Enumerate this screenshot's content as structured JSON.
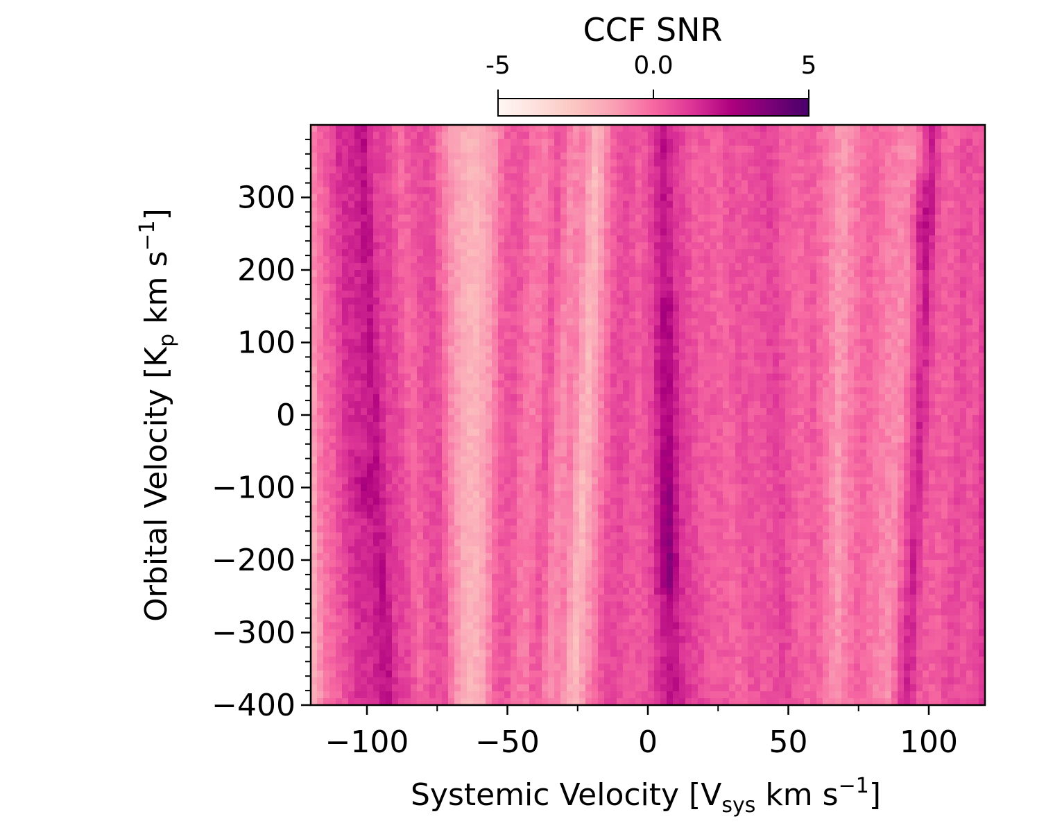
{
  "chart_data": {
    "type": "heatmap",
    "title": "",
    "xlabel": "Systemic Velocity [V",
    "xlabel_sub": "sys",
    "xlabel_units": " km s",
    "xlabel_sup": "−1",
    "xlabel_close": "]",
    "ylabel": "Orbital Velocity [K",
    "ylabel_sub": "p",
    "ylabel_units": " km s",
    "ylabel_sup": "−1",
    "ylabel_close": "]",
    "xlim": [
      -120,
      120
    ],
    "ylim": [
      -400,
      400
    ],
    "x_ticks": [
      -100,
      -50,
      0,
      50,
      100
    ],
    "x_tick_labels": [
      "−100",
      "−50",
      "0",
      "50",
      "100"
    ],
    "y_ticks": [
      -400,
      -300,
      -200,
      -100,
      0,
      100,
      200,
      300
    ],
    "y_tick_labels": [
      "−400",
      "−300",
      "−200",
      "−100",
      "0",
      "100",
      "200",
      "300"
    ],
    "colorbar": {
      "label": "CCF SNR",
      "range": [
        -5,
        5
      ],
      "ticks": [
        -5,
        0,
        5
      ],
      "tick_labels": [
        "-5",
        "0.0",
        "5"
      ],
      "colormap": "RdPu",
      "colors": [
        "#fff7f3",
        "#fde0dd",
        "#fcc5c0",
        "#fa9fb5",
        "#f768a1",
        "#dd3497",
        "#ae017e",
        "#7a0177",
        "#49006a"
      ]
    },
    "column_profile_snr": [
      {
        "v": -120,
        "snr": -1.6
      },
      {
        "v": -117,
        "snr": -0.3
      },
      {
        "v": -112,
        "snr": 0.4
      },
      {
        "v": -107,
        "snr": 1.4
      },
      {
        "v": -101,
        "snr": 1.6
      },
      {
        "v": -97,
        "snr": 2.2
      },
      {
        "v": -93,
        "snr": 1.0
      },
      {
        "v": -89,
        "snr": 0.9
      },
      {
        "v": -84,
        "snr": -0.1
      },
      {
        "v": -80,
        "snr": 0.6
      },
      {
        "v": -75,
        "snr": 0.8
      },
      {
        "v": -70,
        "snr": -0.8
      },
      {
        "v": -66,
        "snr": -1.6
      },
      {
        "v": -62,
        "snr": -2.0
      },
      {
        "v": -57,
        "snr": -1.2
      },
      {
        "v": -53,
        "snr": 0.2
      },
      {
        "v": -48,
        "snr": 0.6
      },
      {
        "v": -44,
        "snr": -0.2
      },
      {
        "v": -40,
        "snr": -0.4
      },
      {
        "v": -36,
        "snr": 0.6
      },
      {
        "v": -31,
        "snr": -0.8
      },
      {
        "v": -27,
        "snr": -0.4
      },
      {
        "v": -22,
        "snr": -2.2
      },
      {
        "v": -18,
        "snr": -0.8
      },
      {
        "v": -13,
        "snr": 0.6
      },
      {
        "v": -9,
        "snr": 0.8
      },
      {
        "v": -4,
        "snr": 0.3
      },
      {
        "v": 0,
        "snr": 0.6
      },
      {
        "v": 4,
        "snr": 1.6
      },
      {
        "v": 7,
        "snr": 2.2
      },
      {
        "v": 11,
        "snr": 1.2
      },
      {
        "v": 15,
        "snr": 0.8
      },
      {
        "v": 20,
        "snr": 0.2
      },
      {
        "v": 24,
        "snr": 0.4
      },
      {
        "v": 28,
        "snr": 0.0
      },
      {
        "v": 33,
        "snr": 0.6
      },
      {
        "v": 37,
        "snr": 0.4
      },
      {
        "v": 42,
        "snr": 0.6
      },
      {
        "v": 46,
        "snr": 1.0
      },
      {
        "v": 50,
        "snr": 0.4
      },
      {
        "v": 55,
        "snr": 0.0
      },
      {
        "v": 59,
        "snr": 0.4
      },
      {
        "v": 64,
        "snr": -0.4
      },
      {
        "v": 68,
        "snr": -1.2
      },
      {
        "v": 72,
        "snr": -0.4
      },
      {
        "v": 77,
        "snr": 0.2
      },
      {
        "v": 81,
        "snr": -0.2
      },
      {
        "v": 85,
        "snr": -0.6
      },
      {
        "v": 90,
        "snr": -0.8
      },
      {
        "v": 94,
        "snr": 0.8
      },
      {
        "v": 97,
        "snr": 1.8
      },
      {
        "v": 101,
        "snr": 0.4
      },
      {
        "v": 106,
        "snr": 0.2
      },
      {
        "v": 111,
        "snr": 0.8
      },
      {
        "v": 116,
        "snr": 0.4
      },
      {
        "v": 120,
        "snr": 1.2
      }
    ],
    "features": [
      {
        "v": 7,
        "kp_range": [
          -250,
          160
        ],
        "peak_snr": 3.4,
        "kp_peak": -200
      },
      {
        "v": 97,
        "kp_range": [
          200,
          330
        ],
        "peak_snr": 3.0,
        "kp_peak": 260
      },
      {
        "v": -101,
        "kp_range": [
          -140,
          -60
        ],
        "peak_snr": 2.4,
        "kp_peak": -100
      },
      {
        "v": -97,
        "kp_range": [
          80,
          280
        ],
        "peak_snr": 2.2,
        "kp_peak": 120
      }
    ]
  }
}
